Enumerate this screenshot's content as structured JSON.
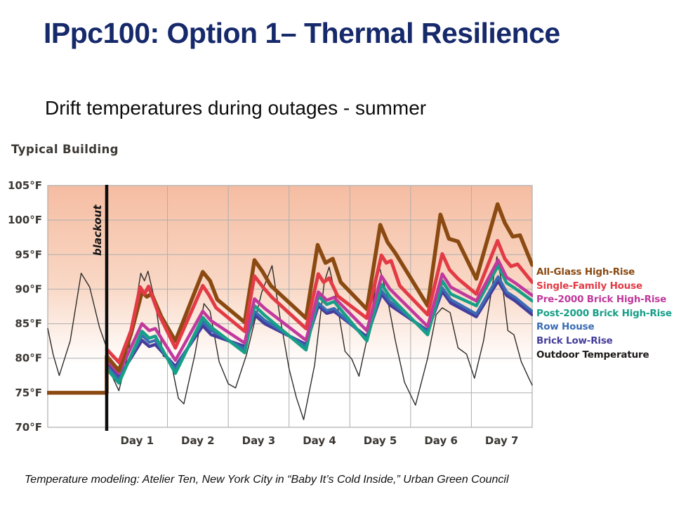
{
  "slide": {
    "title": "IPpc100: Option 1– Thermal Resilience",
    "subtitle": "Drift temperatures during outages - summer",
    "footer": "Temperature modeling: Atelier Ten, New York City in “Baby It’s Cold Inside,” Urban Green Council"
  },
  "chart_data": {
    "type": "line",
    "title": "Typical Building",
    "y_axis": {
      "unit": "°F",
      "min": 70,
      "max": 105,
      "step": 5,
      "tick_labels": [
        "105°F",
        "100°F",
        "95°F",
        "90°F",
        "85°F",
        "80°F",
        "75°F",
        "70°F"
      ],
      "tick_values": [
        105,
        100,
        95,
        90,
        85,
        80,
        75,
        70
      ]
    },
    "x_axis": {
      "unit": "days",
      "range_days": [
        -0.97,
        7
      ],
      "day_labels": [
        "Day 1",
        "Day 2",
        "Day 3",
        "Day 4",
        "Day 5",
        "Day 6",
        "Day 7"
      ]
    },
    "annotation": {
      "label": "blackout",
      "day": 0
    },
    "style": {
      "background_top": "#f5bda2",
      "background_mid": "#f9d8c6",
      "background_bottom": "#ffffff",
      "grid_color": "#aeaeae",
      "blackout_color": "#0d0d0d"
    },
    "series": [
      {
        "name": "All-Glass High-Rise",
        "color": "#8a4a12",
        "width": 5.5,
        "points": [
          [
            -0.97,
            75
          ],
          [
            0,
            75
          ],
          [
            0,
            80.3
          ],
          [
            0.2,
            78.2
          ],
          [
            0.4,
            83.5
          ],
          [
            0.58,
            89.6
          ],
          [
            0.66,
            88.9
          ],
          [
            0.74,
            89.3
          ],
          [
            0.9,
            86
          ],
          [
            1.13,
            82.5
          ],
          [
            1.58,
            92.5
          ],
          [
            1.7,
            91.2
          ],
          [
            1.82,
            88.5
          ],
          [
            2.27,
            85.2
          ],
          [
            2.43,
            94.2
          ],
          [
            2.56,
            92.6
          ],
          [
            2.7,
            90.5
          ],
          [
            3.28,
            85.8
          ],
          [
            3.47,
            96.4
          ],
          [
            3.6,
            93.8
          ],
          [
            3.72,
            94.4
          ],
          [
            3.85,
            91
          ],
          [
            4.28,
            87.1
          ],
          [
            4.5,
            99.3
          ],
          [
            4.62,
            96.8
          ],
          [
            4.75,
            95.2
          ],
          [
            5.28,
            87.6
          ],
          [
            5.49,
            100.8
          ],
          [
            5.63,
            97.3
          ],
          [
            5.78,
            96.9
          ],
          [
            6.08,
            91.5
          ],
          [
            6.43,
            102.3
          ],
          [
            6.55,
            99.6
          ],
          [
            6.68,
            97.6
          ],
          [
            6.8,
            97.8
          ],
          [
            7,
            93.5
          ]
        ]
      },
      {
        "name": "Single-Family House",
        "color": "#e23b45",
        "width": 5,
        "points": [
          [
            0,
            81.3
          ],
          [
            0.2,
            79.4
          ],
          [
            0.4,
            84
          ],
          [
            0.55,
            90.3
          ],
          [
            0.62,
            89.3
          ],
          [
            0.69,
            90.4
          ],
          [
            0.85,
            86.5
          ],
          [
            1.13,
            81.5
          ],
          [
            1.58,
            90.5
          ],
          [
            1.68,
            89.2
          ],
          [
            1.8,
            87.3
          ],
          [
            2.27,
            83.9
          ],
          [
            2.43,
            91.9
          ],
          [
            2.58,
            90.2
          ],
          [
            2.72,
            88.8
          ],
          [
            3.28,
            84.3
          ],
          [
            3.48,
            92.2
          ],
          [
            3.57,
            91
          ],
          [
            3.66,
            91.6
          ],
          [
            3.8,
            89
          ],
          [
            4.28,
            85.8
          ],
          [
            4.52,
            94.9
          ],
          [
            4.6,
            93.8
          ],
          [
            4.68,
            94.1
          ],
          [
            4.82,
            90.5
          ],
          [
            5.28,
            86.3
          ],
          [
            5.52,
            95.1
          ],
          [
            5.64,
            92.8
          ],
          [
            5.78,
            91.5
          ],
          [
            6.08,
            89.3
          ],
          [
            6.43,
            97
          ],
          [
            6.55,
            94.4
          ],
          [
            6.65,
            93.3
          ],
          [
            6.76,
            93.6
          ],
          [
            7,
            91
          ]
        ]
      },
      {
        "name": "Pre-2000 Brick High-Rise",
        "color": "#c0399c",
        "width": 4.5,
        "points": [
          [
            0,
            79.8
          ],
          [
            0.2,
            77.8
          ],
          [
            0.58,
            85
          ],
          [
            0.7,
            84
          ],
          [
            0.8,
            84.3
          ],
          [
            1.13,
            79.7
          ],
          [
            1.58,
            86.8
          ],
          [
            1.72,
            85.4
          ],
          [
            2.27,
            82.2
          ],
          [
            2.43,
            88.6
          ],
          [
            2.6,
            87.2
          ],
          [
            3.28,
            82.6
          ],
          [
            3.48,
            89.6
          ],
          [
            3.62,
            88.4
          ],
          [
            3.74,
            88.8
          ],
          [
            4.28,
            84
          ],
          [
            4.52,
            91.9
          ],
          [
            4.66,
            90
          ],
          [
            5.28,
            84.6
          ],
          [
            5.52,
            92.2
          ],
          [
            5.66,
            90.3
          ],
          [
            6.08,
            88.3
          ],
          [
            6.44,
            94.2
          ],
          [
            6.58,
            91.7
          ],
          [
            6.72,
            90.9
          ],
          [
            7,
            89.1
          ]
        ]
      },
      {
        "name": "Post-2000 Brick High-Rise",
        "color": "#169f87",
        "width": 4.5,
        "points": [
          [
            0,
            78.5
          ],
          [
            0.2,
            76.4
          ],
          [
            0.58,
            83.9
          ],
          [
            0.7,
            82.9
          ],
          [
            0.8,
            83.2
          ],
          [
            1.13,
            77.8
          ],
          [
            1.58,
            85.9
          ],
          [
            1.72,
            84.5
          ],
          [
            2.27,
            80.8
          ],
          [
            2.43,
            87.6
          ],
          [
            2.6,
            86.2
          ],
          [
            3.28,
            81.2
          ],
          [
            3.48,
            89
          ],
          [
            3.62,
            87.8
          ],
          [
            3.74,
            88.2
          ],
          [
            4.28,
            82.5
          ],
          [
            4.52,
            90.7
          ],
          [
            4.66,
            88.9
          ],
          [
            5.28,
            83.4
          ],
          [
            5.52,
            91.2
          ],
          [
            5.66,
            89.3
          ],
          [
            6.08,
            87.6
          ],
          [
            6.44,
            93.4
          ],
          [
            6.58,
            90.9
          ],
          [
            6.72,
            90.1
          ],
          [
            7,
            88.3
          ]
        ]
      },
      {
        "name": "Row House",
        "color": "#3a6cb4",
        "width": 4,
        "points": [
          [
            0,
            78.9
          ],
          [
            0.2,
            76.9
          ],
          [
            0.58,
            83.3
          ],
          [
            0.7,
            82.3
          ],
          [
            0.8,
            82.6
          ],
          [
            1.13,
            78.4
          ],
          [
            1.58,
            85.3
          ],
          [
            1.72,
            84
          ],
          [
            2.27,
            81.3
          ],
          [
            2.43,
            86.8
          ],
          [
            2.6,
            85.5
          ],
          [
            3.28,
            81.7
          ],
          [
            3.48,
            88
          ],
          [
            3.62,
            86.9
          ],
          [
            3.74,
            87.2
          ],
          [
            4.28,
            82.8
          ],
          [
            4.52,
            89.8
          ],
          [
            4.66,
            88.2
          ],
          [
            5.28,
            83.8
          ],
          [
            5.52,
            90.2
          ],
          [
            5.66,
            88.5
          ],
          [
            6.08,
            86.4
          ],
          [
            6.44,
            91.8
          ],
          [
            6.58,
            89.6
          ],
          [
            6.72,
            88.8
          ],
          [
            7,
            86.8
          ]
        ]
      },
      {
        "name": "Brick Low-Rise",
        "color": "#453d9b",
        "width": 4.5,
        "points": [
          [
            0,
            79.2
          ],
          [
            0.2,
            77.2
          ],
          [
            0.58,
            82.6
          ],
          [
            0.7,
            81.7
          ],
          [
            0.8,
            82
          ],
          [
            1.13,
            78.8
          ],
          [
            1.58,
            84.7
          ],
          [
            1.72,
            83.4
          ],
          [
            2.27,
            81.7
          ],
          [
            2.43,
            86.3
          ],
          [
            2.6,
            85
          ],
          [
            3.28,
            82
          ],
          [
            3.48,
            87.6
          ],
          [
            3.62,
            86.5
          ],
          [
            3.74,
            86.8
          ],
          [
            4.28,
            83.1
          ],
          [
            4.52,
            89.3
          ],
          [
            4.66,
            87.7
          ],
          [
            5.28,
            84
          ],
          [
            5.52,
            89.7
          ],
          [
            5.66,
            88
          ],
          [
            6.08,
            86
          ],
          [
            6.44,
            91.2
          ],
          [
            6.58,
            89.1
          ],
          [
            6.72,
            88.3
          ],
          [
            7,
            86.3
          ]
        ]
      },
      {
        "name": "Outdoor Temperature",
        "color": "#2e2a28",
        "width": 1.4,
        "points": [
          [
            -0.97,
            84.3
          ],
          [
            -0.88,
            80.5
          ],
          [
            -0.78,
            77.5
          ],
          [
            -0.6,
            82.5
          ],
          [
            -0.42,
            92.3
          ],
          [
            -0.28,
            90.3
          ],
          [
            -0.12,
            84.5
          ],
          [
            0,
            81.5
          ],
          [
            0.1,
            77.2
          ],
          [
            0.2,
            75.3
          ],
          [
            0.35,
            80.5
          ],
          [
            0.5,
            89
          ],
          [
            0.56,
            92.3
          ],
          [
            0.62,
            91.2
          ],
          [
            0.68,
            92.6
          ],
          [
            0.8,
            88
          ],
          [
            0.93,
            80.3
          ],
          [
            1.05,
            79.8
          ],
          [
            1.18,
            74.2
          ],
          [
            1.27,
            73.4
          ],
          [
            1.45,
            80.5
          ],
          [
            1.6,
            87.9
          ],
          [
            1.7,
            86.8
          ],
          [
            1.85,
            79.5
          ],
          [
            2,
            76.3
          ],
          [
            2.12,
            75.7
          ],
          [
            2.3,
            80.5
          ],
          [
            2.55,
            89.5
          ],
          [
            2.72,
            93.4
          ],
          [
            2.85,
            86
          ],
          [
            3,
            78.5
          ],
          [
            3.12,
            74.3
          ],
          [
            3.24,
            71.1
          ],
          [
            3.42,
            79
          ],
          [
            3.58,
            91
          ],
          [
            3.66,
            93.2
          ],
          [
            3.78,
            88.5
          ],
          [
            3.92,
            81
          ],
          [
            4.03,
            79.9
          ],
          [
            4.15,
            77.4
          ],
          [
            4.3,
            83.5
          ],
          [
            4.48,
            93.4
          ],
          [
            4.6,
            89.5
          ],
          [
            4.75,
            82.5
          ],
          [
            4.9,
            76.5
          ],
          [
            5.08,
            73.2
          ],
          [
            5.28,
            80
          ],
          [
            5.42,
            86.3
          ],
          [
            5.52,
            87.3
          ],
          [
            5.65,
            86.6
          ],
          [
            5.78,
            81.5
          ],
          [
            5.92,
            80.6
          ],
          [
            6.05,
            77.1
          ],
          [
            6.2,
            82.5
          ],
          [
            6.42,
            94.7
          ],
          [
            6.52,
            90
          ],
          [
            6.6,
            84
          ],
          [
            6.7,
            83.4
          ],
          [
            6.82,
            79.5
          ],
          [
            6.95,
            77
          ],
          [
            7,
            76.1
          ]
        ]
      }
    ]
  }
}
